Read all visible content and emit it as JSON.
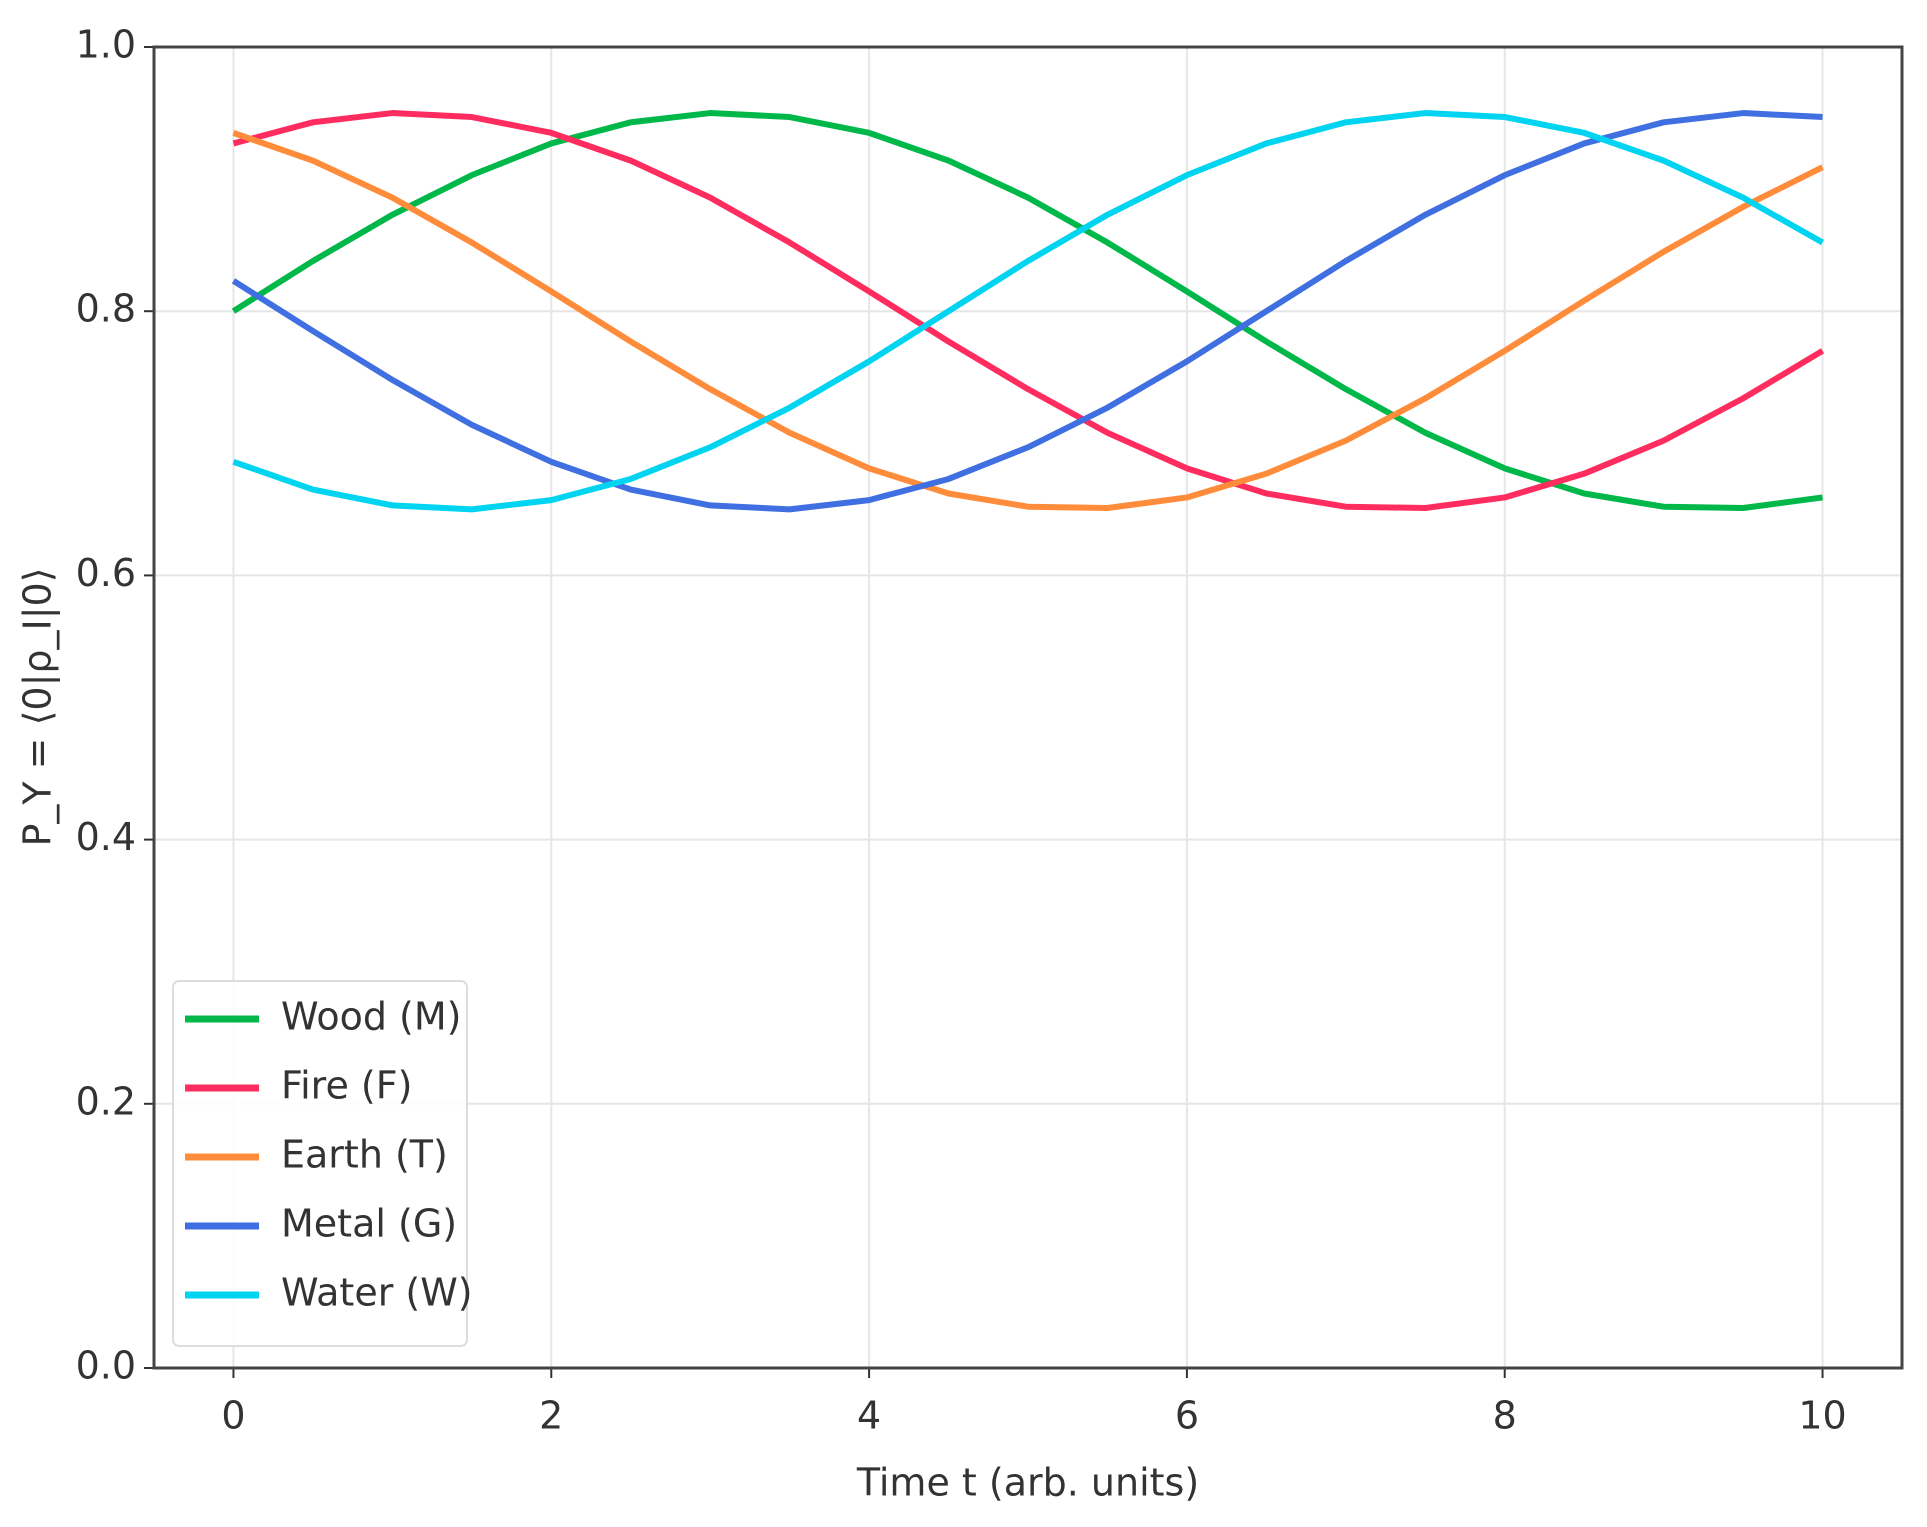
{
  "chart_data": {
    "type": "line",
    "xlabel": "Time t (arb. units)",
    "ylabel": "P_Y = ⟨0|ρ_I|0⟩",
    "x": [
      0,
      0.5,
      1,
      1.5,
      2,
      2.5,
      3,
      3.5,
      4,
      4.5,
      5,
      5.5,
      6,
      6.5,
      7,
      7.5,
      8,
      8.5,
      9,
      9.5,
      10
    ],
    "series": [
      {
        "name": "Wood (M)",
        "color": "#00b84a",
        "values": [
          0.8,
          0.838,
          0.873,
          0.903,
          0.927,
          0.943,
          0.95,
          0.947,
          0.935,
          0.914,
          0.886,
          0.852,
          0.815,
          0.777,
          0.741,
          0.708,
          0.681,
          0.662,
          0.652,
          0.651,
          0.659
        ]
      },
      {
        "name": "Fire (F)",
        "color": "#ff2d5f",
        "values": [
          0.927,
          0.943,
          0.95,
          0.947,
          0.935,
          0.914,
          0.886,
          0.852,
          0.815,
          0.777,
          0.741,
          0.708,
          0.681,
          0.662,
          0.652,
          0.651,
          0.659,
          0.677,
          0.702,
          0.734,
          0.77
        ]
      },
      {
        "name": "Earth (T)",
        "color": "#ff8c3a",
        "values": [
          0.935,
          0.914,
          0.886,
          0.852,
          0.815,
          0.777,
          0.741,
          0.708,
          0.681,
          0.662,
          0.652,
          0.651,
          0.659,
          0.677,
          0.702,
          0.734,
          0.77,
          0.808,
          0.845,
          0.879,
          0.909
        ]
      },
      {
        "name": "Metal (G)",
        "color": "#3f6fe0",
        "values": [
          0.823,
          0.785,
          0.748,
          0.714,
          0.686,
          0.665,
          0.653,
          0.65,
          0.657,
          0.673,
          0.697,
          0.727,
          0.762,
          0.8,
          0.838,
          0.873,
          0.903,
          0.927,
          0.943,
          0.95,
          0.947
        ]
      },
      {
        "name": "Water (W)",
        "color": "#00d4f0",
        "values": [
          0.686,
          0.665,
          0.653,
          0.65,
          0.657,
          0.673,
          0.697,
          0.727,
          0.762,
          0.8,
          0.838,
          0.873,
          0.903,
          0.927,
          0.943,
          0.95,
          0.947,
          0.935,
          0.914,
          0.886,
          0.852
        ]
      }
    ],
    "xlim": [
      -0.5,
      10.5
    ],
    "xticks": [
      0,
      2,
      4,
      6,
      8,
      10
    ],
    "ylim": [
      0,
      1
    ],
    "yticks": [
      {
        "value": 0,
        "label": "0.0"
      },
      0.2,
      0.4,
      0.6,
      0.8,
      {
        "value": 1,
        "label": "1.0"
      }
    ],
    "grid": true,
    "legend": "lower left"
  }
}
